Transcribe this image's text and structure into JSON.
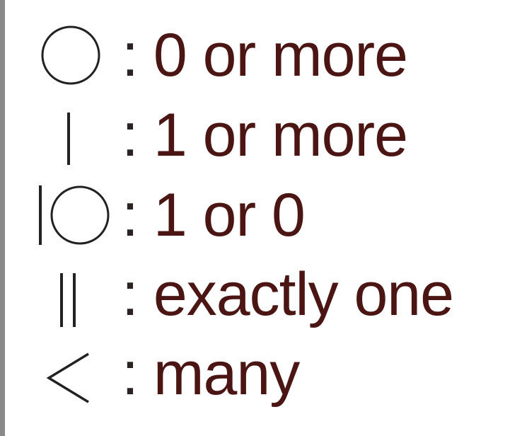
{
  "legend": {
    "colors": {
      "text": "#4a1512",
      "colon": "#2b2224",
      "symbol": "#222222",
      "border": "#8a8a8a"
    },
    "items": [
      {
        "icon": "circle-icon",
        "colon": ":",
        "label": "0 or more"
      },
      {
        "icon": "single-bar-icon",
        "colon": ":",
        "label": "1 or more"
      },
      {
        "icon": "bar-circle-icon",
        "colon": ":",
        "label": "1 or 0"
      },
      {
        "icon": "double-bar-icon",
        "colon": ":",
        "label": "exactly one"
      },
      {
        "icon": "crows-foot-icon",
        "colon": ":",
        "label": "many"
      }
    ]
  }
}
